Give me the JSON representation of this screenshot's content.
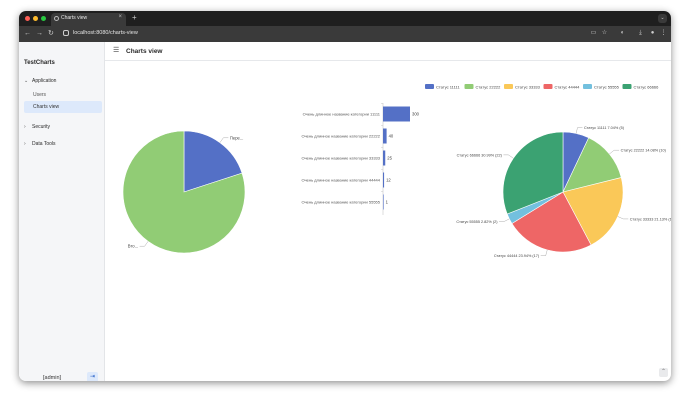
{
  "browser": {
    "tab_title": "Charts view",
    "tab_close": "×",
    "new_tab": "+",
    "menu": "⌄",
    "url": "localhost:8080/charts-view",
    "back": "←",
    "forward": "→",
    "reload": "↻"
  },
  "sidebar": {
    "brand": "TestCharts",
    "groups": [
      {
        "label": "Application",
        "expanded": true,
        "items": [
          {
            "label": "Users",
            "active": false
          },
          {
            "label": "Charts view",
            "active": true
          }
        ]
      },
      {
        "label": "Security",
        "expanded": false
      },
      {
        "label": "Data Tools",
        "expanded": false
      }
    ],
    "user_label": "[admin]",
    "logout_icon": "⇥"
  },
  "header": {
    "menu_icon": "☰",
    "title": "Charts view"
  },
  "chart_data": [
    {
      "type": "pie",
      "labels": [
        "Пере...",
        "Вто..."
      ],
      "values": [
        20,
        80
      ],
      "colors": [
        "#5470c6",
        "#91cc75"
      ]
    },
    {
      "type": "bar",
      "orientation": "horizontal",
      "categories": [
        "Очень длинное название категории 11111",
        "Очень длинное название категории 22222",
        "Очень длинное название категории 33333",
        "Очень длинное название категории 44444",
        "Очень длинное название категории 55555"
      ],
      "values": [
        300,
        40,
        25,
        12,
        1
      ],
      "value_labels": [
        "300",
        "40",
        "25",
        "12",
        "1"
      ],
      "color": "#5470c6",
      "xlim": [
        0,
        300
      ]
    },
    {
      "type": "pie",
      "legend": [
        "Статус 11111",
        "Статус 22222",
        "Статус 33333",
        "Статус 44444",
        "Статус 55555",
        "Статус 66666"
      ],
      "legend_position": "top-right",
      "values": [
        5,
        10,
        15,
        17,
        2,
        22
      ],
      "slice_labels": [
        "Статус 11111 7.04% (5)",
        "Статус 22222 14.08% (10)",
        "Статус 33333 21.13% (15)",
        "Статус 44444 23.94% (17)",
        "Статус 55555 2.82% (2)",
        "Статус 66666 30.99% (22)"
      ],
      "colors": [
        "#5470c6",
        "#91cc75",
        "#fac858",
        "#ee6666",
        "#73c0de",
        "#3ba272"
      ]
    }
  ],
  "scroll_top_icon": "⌃"
}
